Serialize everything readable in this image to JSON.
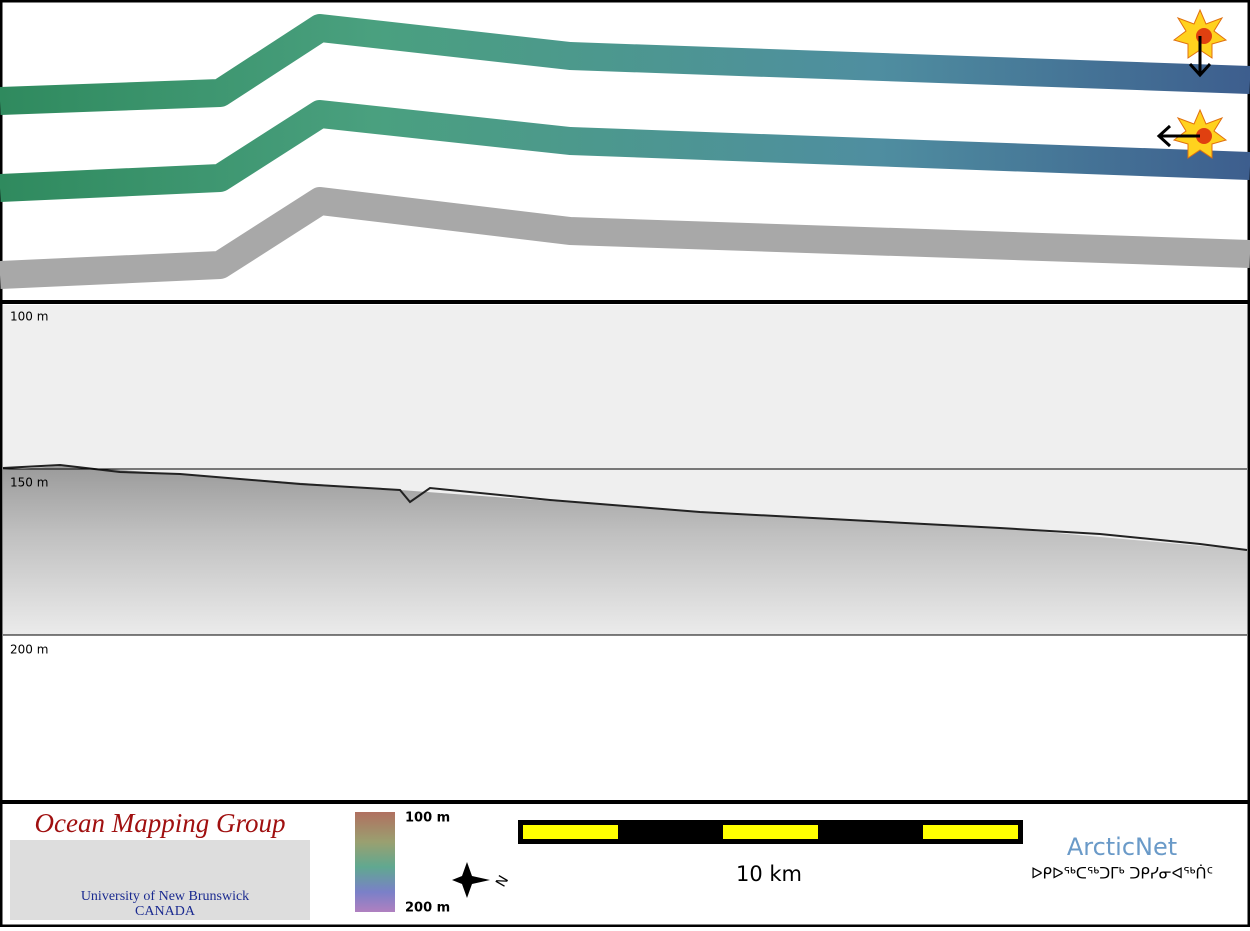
{
  "profile": {
    "depth_labels": [
      "100 m",
      "150 m",
      "200 m"
    ]
  },
  "footer": {
    "logo_title": "Ocean Mapping Group",
    "university": "University of New Brunswick",
    "country": "CANADA",
    "colorbar_top": "100 m",
    "colorbar_bottom": "200 m",
    "compass": "N",
    "scale_label": "10 km",
    "partner": "ArcticNet",
    "partner_syllabics": "ᐅᑭᐅᖅᑕᖅᑐᒥᒃ ᑐᑭᓯᓂᐊᖅᑏᑦ"
  }
}
